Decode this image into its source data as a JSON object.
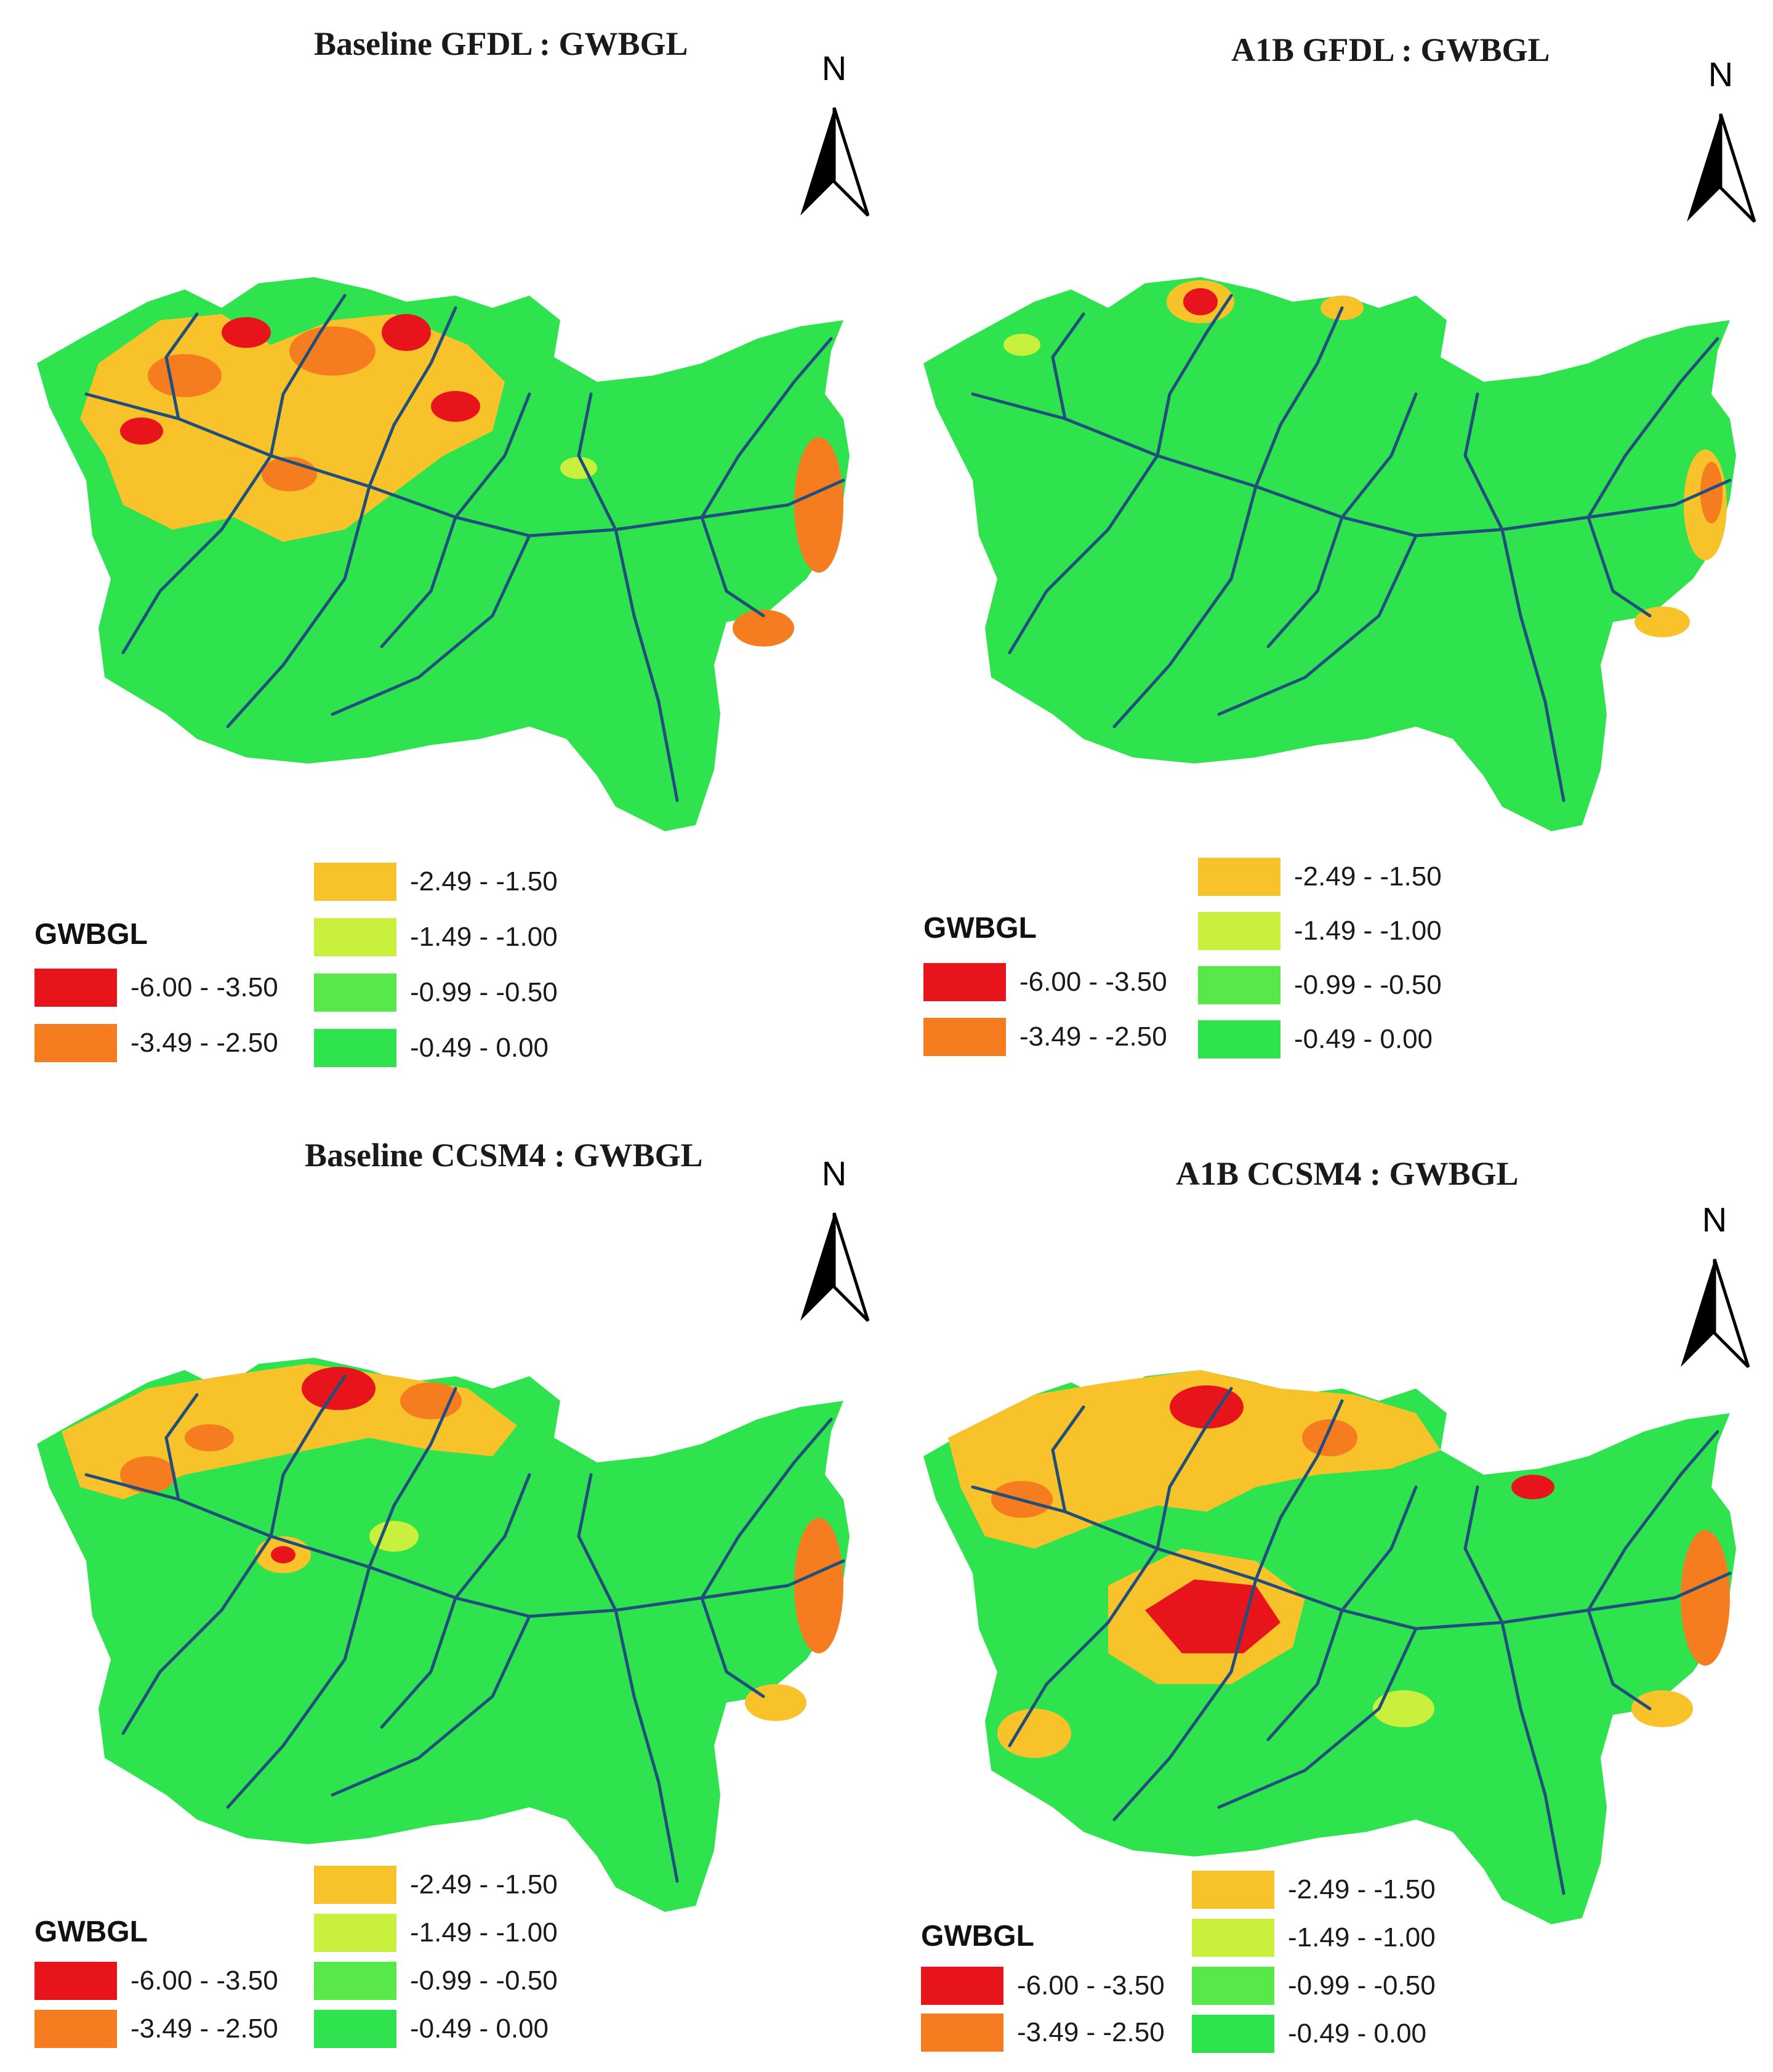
{
  "colors": {
    "class1": "#e8141c",
    "class2": "#f57c1f",
    "class3": "#f8c22a",
    "class4": "#c8f03c",
    "class5": "#58e84a",
    "class6": "#2fe34f",
    "river": "#1f4f7a"
  },
  "north_label": "N",
  "legend": {
    "title": "GWBGL",
    "classes": [
      {
        "range": "-6.00 - -3.50",
        "color": "#e8141c"
      },
      {
        "range": "-3.49 - -2.50",
        "color": "#f57c1f"
      },
      {
        "range": "-2.49 - -1.50",
        "color": "#f8c22a"
      },
      {
        "range": "-1.49 - -1.00",
        "color": "#c8f03c"
      },
      {
        "range": "-0.99 - -0.50",
        "color": "#58e84a"
      },
      {
        "range": "-0.49 - 0.00",
        "color": "#2fe34f"
      }
    ]
  },
  "panels": [
    {
      "title": "Baseline GFDL : GWBGL"
    },
    {
      "title": "A1B GFDL : GWBGL"
    },
    {
      "title": "Baseline CCSM4 : GWBGL"
    },
    {
      "title": "A1B CCSM4 : GWBGL"
    }
  ]
}
